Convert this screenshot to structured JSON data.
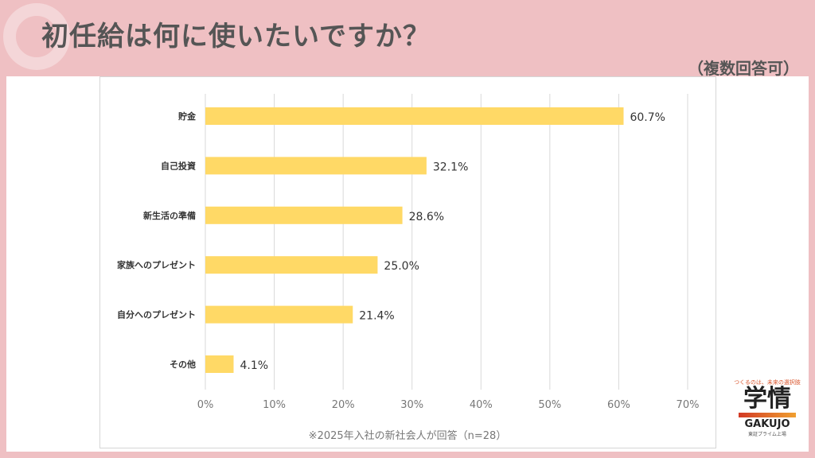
{
  "header": {
    "title": "初任給は何に使いたいですか？",
    "subtitle": "（複数回答可）"
  },
  "footnote": "※2025年入社の新社会人が回答（n=28）",
  "logo": {
    "tagline": "つくるのは、未来の選択肢",
    "kanji": "学情",
    "english": "GAKUJO",
    "listing": "東証プライム上場"
  },
  "chart_data": {
    "type": "bar",
    "orientation": "horizontal",
    "categories": [
      "貯金",
      "自己投資",
      "新生活の準備",
      "家族へのプレゼント",
      "自分へのプレゼント",
      "その他"
    ],
    "values": [
      60.7,
      32.1,
      28.6,
      25.0,
      21.4,
      4.1
    ],
    "value_labels": [
      "60.7%",
      "32.1%",
      "28.6%",
      "25.0%",
      "21.4%",
      "4.1%"
    ],
    "xlim": [
      0,
      70
    ],
    "x_ticks": [
      "0%",
      "10%",
      "20%",
      "30%",
      "40%",
      "50%",
      "60%",
      "70%"
    ],
    "grid": true,
    "bar_color": "#ffd966"
  }
}
